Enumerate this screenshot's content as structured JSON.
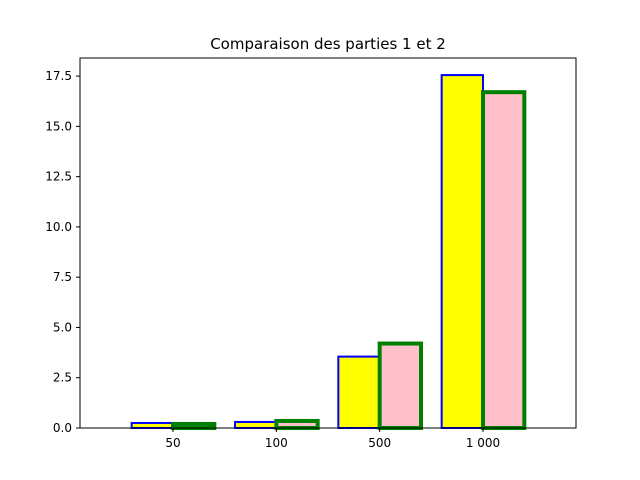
{
  "chart_data": {
    "type": "bar",
    "title": "Comparaison des parties 1 et 2",
    "xlabel": "",
    "ylabel": "",
    "categories": [
      "50",
      "100",
      "500",
      "1 000"
    ],
    "ylim": [
      0,
      18.4
    ],
    "yticks": [
      "0.0",
      "2.5",
      "5.0",
      "7.5",
      "10.0",
      "12.5",
      "15.0",
      "17.5"
    ],
    "grid": false,
    "series": [
      {
        "values": [
          0.25,
          0.3,
          3.55,
          17.55
        ],
        "fill": "#ffff00",
        "stroke": "#0000ff"
      },
      {
        "values": [
          0.2,
          0.35,
          4.2,
          16.7
        ],
        "fill": "#ffc0cb",
        "stroke": "#008000"
      }
    ]
  }
}
